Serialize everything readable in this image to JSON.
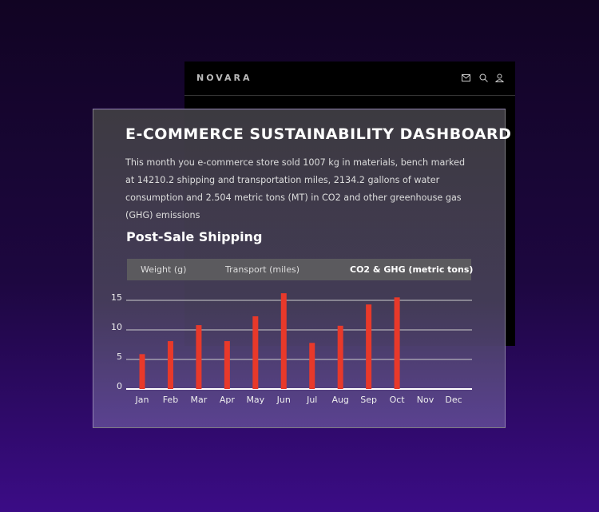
{
  "header": {
    "logo": "NOVARA"
  },
  "dashboard": {
    "title": "E-COMMERCE SUSTAINABILITY DASHBOARD",
    "summary": "This month you e-commerce store sold 1007 kg in materials, bench marked at 14210.2 shipping and transportation miles, 2134.2 gallons of water consumption and 2.504 metric tons (MT) in CO2 and other greenhouse gas (GHG) emissions",
    "section_title": "Post-Sale Shipping",
    "tabs": [
      "Weight (g)",
      "Transport (miles)",
      "CO2 & GHG (metric tons)"
    ]
  },
  "chart_data": {
    "type": "bar",
    "categories": [
      "Jan",
      "Feb",
      "Mar",
      "Apr",
      "May",
      "Jun",
      "Jul",
      "Aug",
      "Sep",
      "Oct",
      "Nov",
      "Dec"
    ],
    "values": [
      5.9,
      8.1,
      10.8,
      8.1,
      12.3,
      16.2,
      7.8,
      10.7,
      14.3,
      15.5,
      null,
      null
    ],
    "color": "#e8392a",
    "ylim": [
      0,
      15
    ],
    "yticks": [
      0,
      5,
      10,
      15
    ],
    "grid": true
  }
}
